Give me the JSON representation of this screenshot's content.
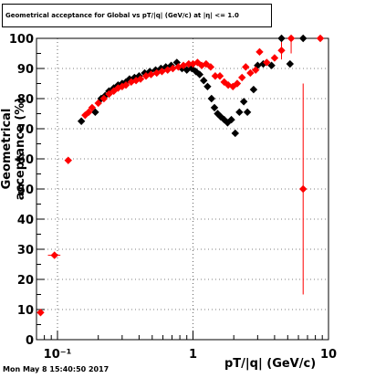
{
  "chart_data": {
    "type": "scatter",
    "title": "Geometrical acceptance for Global vs pT/|q| (GeV/c) at |η| <= 1.0",
    "xlabel": "pT/|q| (GeV/c)",
    "ylabel": "Geometrical acceptance (%)",
    "x_scale": "log",
    "xlim": [
      0.07,
      10
    ],
    "ylim": [
      0,
      100
    ],
    "grid": true,
    "x_tick_labels": [
      "10⁻¹",
      "1",
      "10"
    ],
    "y_tick_labels": [
      "0",
      "10",
      "20",
      "30",
      "40",
      "50",
      "60",
      "70",
      "80",
      "90",
      "100"
    ],
    "series": [
      {
        "color": "#000000",
        "marker": "diamond",
        "points": [
          [
            0.15,
            72.5
          ],
          [
            0.19,
            75.5
          ],
          [
            0.21,
            80
          ],
          [
            0.225,
            81
          ],
          [
            0.24,
            82.5
          ],
          [
            0.26,
            83.5
          ],
          [
            0.28,
            84.5
          ],
          [
            0.3,
            85
          ],
          [
            0.32,
            85.5
          ],
          [
            0.34,
            86.5
          ],
          [
            0.37,
            87
          ],
          [
            0.4,
            87.5
          ],
          [
            0.44,
            88.5
          ],
          [
            0.48,
            89
          ],
          [
            0.53,
            89.5
          ],
          [
            0.58,
            90
          ],
          [
            0.63,
            90.5
          ],
          [
            0.69,
            91
          ],
          [
            0.76,
            92
          ],
          [
            0.83,
            90
          ],
          [
            0.9,
            89.5
          ],
          [
            0.98,
            90
          ],
          [
            1.05,
            89
          ],
          [
            1.12,
            88
          ],
          [
            1.2,
            86
          ],
          [
            1.28,
            84
          ],
          [
            1.37,
            80
          ],
          [
            1.44,
            77
          ],
          [
            1.52,
            75
          ],
          [
            1.6,
            74
          ],
          [
            1.7,
            73
          ],
          [
            1.8,
            72
          ],
          [
            1.92,
            73
          ],
          [
            2.05,
            68.5
          ],
          [
            2.2,
            75.5
          ],
          [
            2.37,
            79
          ],
          [
            2.52,
            75.5
          ],
          [
            2.8,
            83
          ],
          [
            3.0,
            91
          ],
          [
            3.3,
            91.5
          ],
          [
            3.8,
            91
          ],
          [
            4.5,
            100
          ],
          [
            5.2,
            91.5
          ],
          [
            6.5,
            100
          ]
        ]
      },
      {
        "color": "#ff0000",
        "marker": "diamond",
        "points": [
          [
            0.075,
            9
          ],
          [
            0.095,
            28
          ],
          [
            0.12,
            59.5
          ],
          [
            0.16,
            74.5
          ],
          [
            0.17,
            75.5
          ],
          [
            0.18,
            77
          ],
          [
            0.2,
            78.5
          ],
          [
            0.22,
            80
          ],
          [
            0.24,
            81.5
          ],
          [
            0.26,
            82.5
          ],
          [
            0.28,
            83.5
          ],
          [
            0.3,
            84
          ],
          [
            0.32,
            84.5
          ],
          [
            0.35,
            85.5
          ],
          [
            0.38,
            86
          ],
          [
            0.41,
            86.5
          ],
          [
            0.45,
            87.5
          ],
          [
            0.49,
            88
          ],
          [
            0.54,
            88.5
          ],
          [
            0.59,
            89
          ],
          [
            0.65,
            89.5
          ],
          [
            0.71,
            90
          ],
          [
            0.78,
            90.5
          ],
          [
            0.85,
            91
          ],
          [
            0.93,
            91.5
          ],
          [
            1.0,
            91.5
          ],
          [
            1.08,
            92
          ],
          [
            1.16,
            91
          ],
          [
            1.25,
            91.5
          ],
          [
            1.35,
            90.5
          ],
          [
            1.46,
            87.5
          ],
          [
            1.58,
            87.5
          ],
          [
            1.7,
            85.5
          ],
          [
            1.82,
            84.5
          ],
          [
            1.97,
            84
          ],
          [
            2.12,
            85
          ],
          [
            2.3,
            87
          ],
          [
            2.45,
            90.5
          ],
          [
            2.65,
            88.5
          ],
          [
            2.9,
            89.5
          ],
          [
            3.1,
            95.5
          ],
          [
            3.5,
            92
          ],
          [
            4.0,
            93.5
          ],
          [
            4.5,
            96
          ],
          [
            5.3,
            100
          ],
          [
            6.5,
            50
          ],
          [
            8.7,
            100
          ]
        ],
        "error_bars": [
          [
            0.095,
            28,
            0.085,
            0.105,
            28,
            28
          ],
          [
            0.075,
            9,
            0.072,
            0.079,
            9,
            9
          ],
          [
            0.12,
            59.5,
            0.115,
            0.125,
            59.5,
            59.5
          ],
          [
            4.5,
            96,
            4.5,
            4.5,
            93,
            100
          ],
          [
            5.3,
            100,
            5.3,
            5.3,
            95,
            100
          ],
          [
            6.5,
            50,
            6.5,
            6.5,
            15,
            85
          ]
        ]
      }
    ]
  },
  "footer": {
    "timestamp": "Mon May  8 15:40:50 2017"
  }
}
